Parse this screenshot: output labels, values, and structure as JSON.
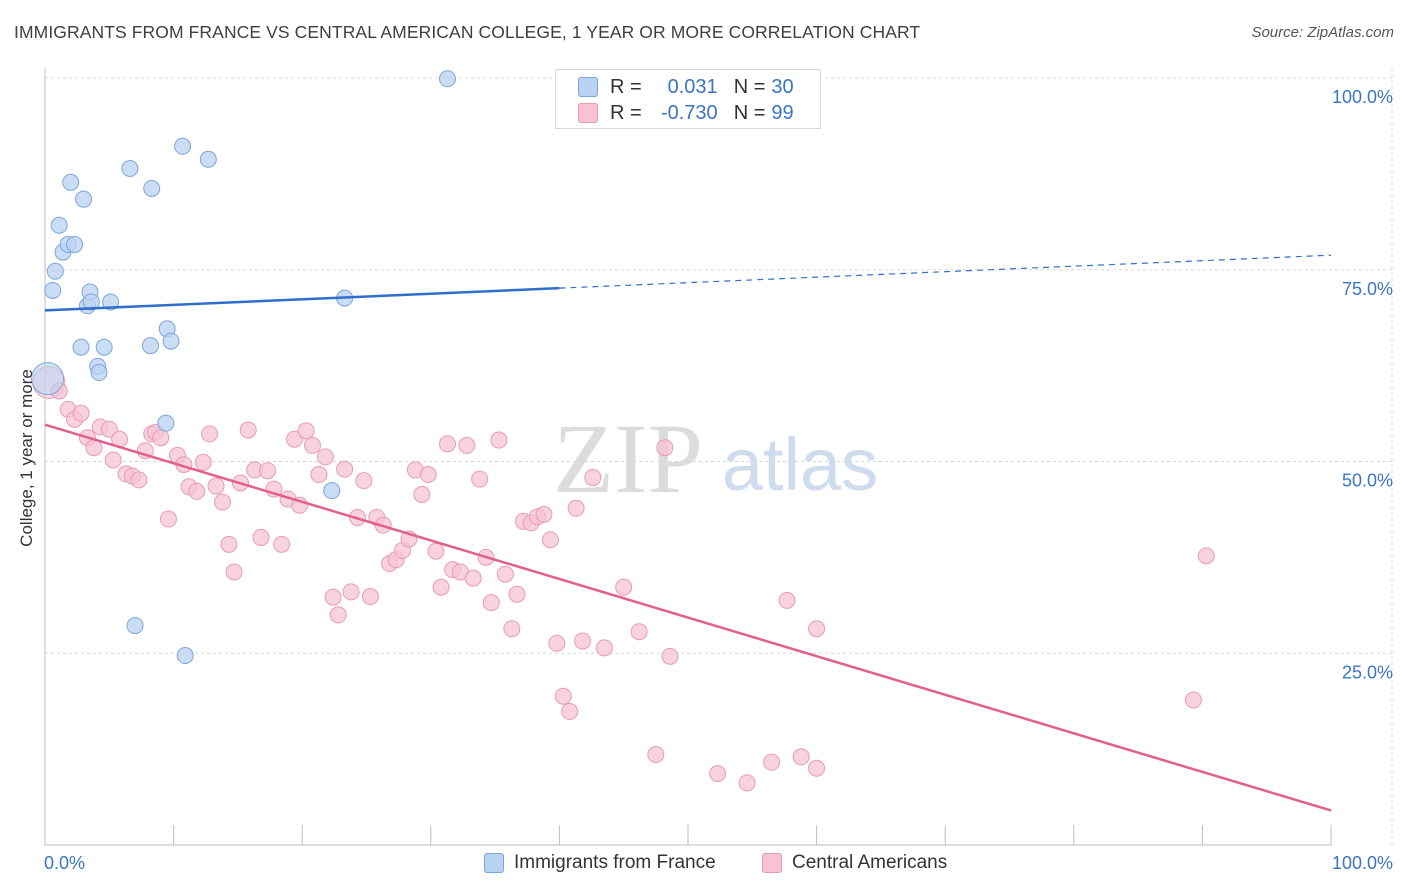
{
  "header": {
    "title": "IMMIGRANTS FROM FRANCE VS CENTRAL AMERICAN COLLEGE, 1 YEAR OR MORE CORRELATION CHART",
    "source": "Source: ZipAtlas.com"
  },
  "watermark": {
    "zip": "ZIP",
    "atlas": "atlas"
  },
  "legend": {
    "rows": [
      {
        "r_label": "R =",
        "r_value": "0.031",
        "n_label": "N =",
        "n_value": "30"
      },
      {
        "r_label": "R =",
        "r_value": "-0.730",
        "n_label": "N =",
        "n_value": "99"
      }
    ]
  },
  "bottom_legend": {
    "items": [
      "Immigrants from France",
      "Central Americans"
    ]
  },
  "colors": {
    "blue_fill": "#b9d2f2",
    "blue_stroke": "#7ba6dd",
    "blue_line": "#2f6fcb",
    "pink_fill": "#f7c3d4",
    "pink_stroke": "#e99bb6",
    "pink_line": "#e0608e",
    "axis_label": "#3a75c4",
    "grid": "#d8d8d8"
  },
  "chart_data": {
    "type": "scatter",
    "title": "IMMIGRANTS FROM FRANCE VS CENTRAL AMERICAN COLLEGE, 1 YEAR OR MORE CORRELATION CHART",
    "xlabel": "",
    "ylabel": "College, 1 year or more",
    "xlim": [
      0,
      100
    ],
    "ylim": [
      0,
      100
    ],
    "x_tick_labels": [
      "0.0%",
      "100.0%"
    ],
    "y_tick_labels": [
      "25.0%",
      "50.0%",
      "75.0%",
      "100.0%"
    ],
    "y_ticks": [
      25,
      50,
      75,
      100
    ],
    "grid": true,
    "legend_position": "top-center",
    "series": [
      {
        "name": "Immigrants from France",
        "r": 0.031,
        "n": 30,
        "trend": {
          "x": [
            0,
            40
          ],
          "y": [
            69.7,
            72.6
          ],
          "dashed_to": [
            100,
            76.9
          ]
        },
        "points": [
          [
            0.2,
            60.8
          ],
          [
            0.6,
            72.3
          ],
          [
            0.8,
            74.8
          ],
          [
            1.1,
            80.8
          ],
          [
            1.4,
            77.3
          ],
          [
            1.8,
            78.3
          ],
          [
            2.0,
            86.4
          ],
          [
            2.3,
            78.3
          ],
          [
            2.8,
            64.9
          ],
          [
            3.0,
            84.2
          ],
          [
            3.3,
            70.3
          ],
          [
            3.5,
            72.1
          ],
          [
            3.6,
            70.8
          ],
          [
            4.1,
            62.4
          ],
          [
            4.2,
            61.6
          ],
          [
            4.6,
            64.9
          ],
          [
            5.1,
            70.8
          ],
          [
            7.0,
            28.6
          ],
          [
            6.6,
            88.2
          ],
          [
            8.3,
            85.6
          ],
          [
            8.2,
            65.1
          ],
          [
            9.4,
            55.0
          ],
          [
            9.5,
            67.3
          ],
          [
            9.8,
            65.7
          ],
          [
            10.7,
            91.1
          ],
          [
            10.9,
            24.7
          ],
          [
            12.7,
            89.4
          ],
          [
            22.3,
            46.2
          ],
          [
            23.3,
            71.3
          ],
          [
            31.3,
            99.9
          ]
        ]
      },
      {
        "name": "Central Americans",
        "r": -0.73,
        "n": 99,
        "trend": {
          "x": [
            0,
            100
          ],
          "y": [
            54.8,
            4.5
          ]
        },
        "points": [
          [
            0.3,
            60.3
          ],
          [
            1.1,
            59.2
          ],
          [
            1.8,
            56.8
          ],
          [
            2.3,
            55.5
          ],
          [
            2.8,
            56.3
          ],
          [
            3.3,
            53.1
          ],
          [
            3.8,
            51.8
          ],
          [
            4.3,
            54.5
          ],
          [
            5.0,
            54.2
          ],
          [
            5.3,
            50.2
          ],
          [
            5.8,
            52.9
          ],
          [
            6.3,
            48.4
          ],
          [
            6.8,
            48.1
          ],
          [
            7.3,
            47.6
          ],
          [
            7.8,
            51.4
          ],
          [
            8.3,
            53.6
          ],
          [
            8.6,
            53.8
          ],
          [
            9.0,
            53.1
          ],
          [
            9.6,
            42.5
          ],
          [
            10.3,
            50.8
          ],
          [
            10.8,
            49.6
          ],
          [
            11.2,
            46.7
          ],
          [
            11.8,
            46.1
          ],
          [
            12.3,
            49.9
          ],
          [
            12.8,
            53.6
          ],
          [
            13.3,
            46.8
          ],
          [
            13.8,
            44.7
          ],
          [
            14.3,
            39.2
          ],
          [
            14.7,
            35.6
          ],
          [
            15.2,
            47.2
          ],
          [
            15.8,
            54.1
          ],
          [
            16.3,
            48.9
          ],
          [
            16.8,
            40.1
          ],
          [
            17.3,
            48.8
          ],
          [
            17.8,
            46.4
          ],
          [
            18.4,
            39.2
          ],
          [
            18.9,
            45.1
          ],
          [
            19.4,
            52.9
          ],
          [
            19.8,
            44.3
          ],
          [
            20.3,
            54.0
          ],
          [
            20.8,
            52.1
          ],
          [
            21.3,
            48.3
          ],
          [
            21.8,
            50.6
          ],
          [
            22.4,
            32.3
          ],
          [
            22.8,
            30.0
          ],
          [
            23.3,
            49.0
          ],
          [
            23.8,
            33.0
          ],
          [
            24.3,
            42.7
          ],
          [
            24.8,
            47.5
          ],
          [
            25.3,
            32.4
          ],
          [
            25.8,
            42.7
          ],
          [
            26.3,
            41.7
          ],
          [
            26.8,
            36.7
          ],
          [
            27.3,
            37.2
          ],
          [
            27.8,
            38.4
          ],
          [
            28.3,
            39.9
          ],
          [
            28.8,
            48.9
          ],
          [
            29.3,
            45.7
          ],
          [
            29.8,
            48.3
          ],
          [
            30.4,
            38.3
          ],
          [
            30.8,
            33.6
          ],
          [
            31.3,
            52.3
          ],
          [
            31.7,
            35.9
          ],
          [
            32.3,
            35.6
          ],
          [
            32.8,
            52.1
          ],
          [
            33.3,
            34.8
          ],
          [
            33.8,
            47.7
          ],
          [
            34.3,
            37.5
          ],
          [
            34.7,
            31.6
          ],
          [
            35.3,
            52.8
          ],
          [
            35.8,
            35.3
          ],
          [
            36.3,
            28.2
          ],
          [
            36.7,
            32.7
          ],
          [
            37.2,
            42.2
          ],
          [
            37.8,
            42.0
          ],
          [
            38.3,
            42.8
          ],
          [
            38.8,
            43.1
          ],
          [
            39.3,
            39.8
          ],
          [
            39.8,
            26.3
          ],
          [
            40.3,
            19.4
          ],
          [
            40.8,
            17.4
          ],
          [
            41.3,
            43.9
          ],
          [
            41.8,
            26.6
          ],
          [
            42.6,
            47.9
          ],
          [
            43.5,
            25.7
          ],
          [
            45.0,
            33.6
          ],
          [
            46.2,
            27.8
          ],
          [
            47.5,
            11.8
          ],
          [
            48.2,
            51.8
          ],
          [
            48.6,
            24.6
          ],
          [
            52.3,
            9.3
          ],
          [
            54.6,
            8.1
          ],
          [
            56.5,
            10.8
          ],
          [
            57.7,
            31.9
          ],
          [
            58.8,
            11.5
          ],
          [
            60.0,
            28.2
          ],
          [
            89.3,
            18.9
          ],
          [
            90.3,
            37.7
          ],
          [
            60.0,
            10.0
          ]
        ]
      }
    ]
  }
}
